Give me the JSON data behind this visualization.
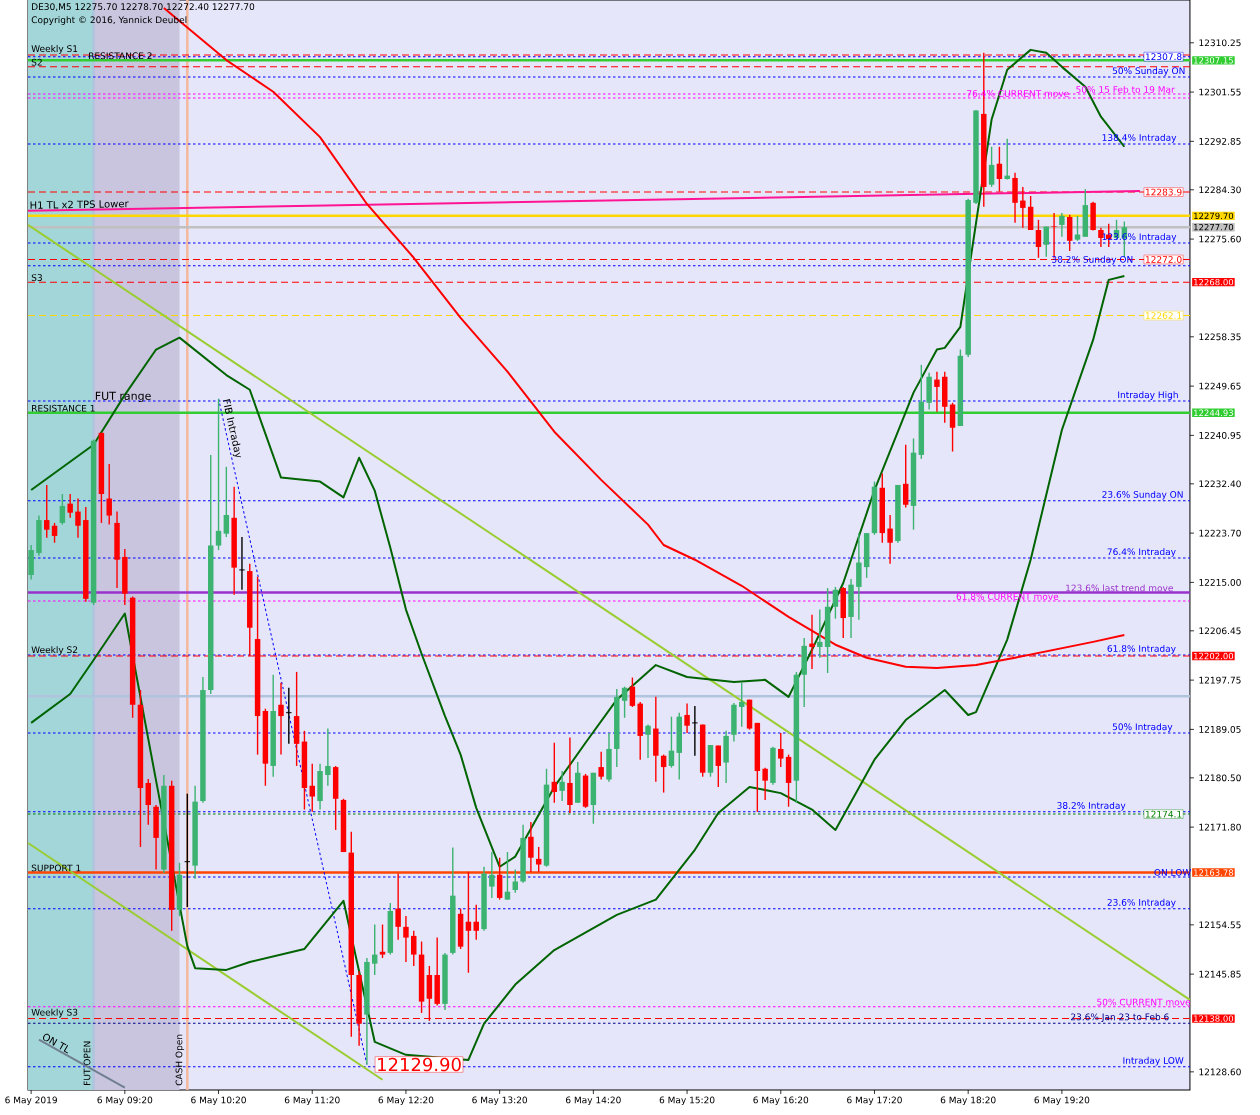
{
  "chart_data": {
    "type": "candlestick",
    "title": "DE30,M5  12275.70 12278.70 12272.40 12277.70",
    "subtitle": "Copyright © 2016, Yannick Deubel",
    "x": [
      "2019-05-06T08:20",
      "2019-05-06T08:25",
      "2019-05-06T08:30",
      "2019-05-06T08:35",
      "2019-05-06T08:40",
      "2019-05-06T08:45",
      "2019-05-06T08:50",
      "2019-05-06T08:55",
      "2019-05-06T09:00",
      "2019-05-06T09:05",
      "2019-05-06T09:10",
      "2019-05-06T09:15",
      "2019-05-06T09:20",
      "2019-05-06T09:25",
      "2019-05-06T09:30",
      "2019-05-06T09:35",
      "2019-05-06T09:40",
      "2019-05-06T09:45",
      "2019-05-06T09:50",
      "2019-05-06T09:55",
      "2019-05-06T10:00",
      "2019-05-06T10:05",
      "2019-05-06T10:10",
      "2019-05-06T10:15",
      "2019-05-06T10:20",
      "2019-05-06T10:25",
      "2019-05-06T10:30",
      "2019-05-06T10:35",
      "2019-05-06T10:40",
      "2019-05-06T10:45",
      "2019-05-06T10:50",
      "2019-05-06T10:55",
      "2019-05-06T11:00",
      "2019-05-06T11:05",
      "2019-05-06T11:10",
      "2019-05-06T11:15",
      "2019-05-06T11:20",
      "2019-05-06T11:25",
      "2019-05-06T11:30",
      "2019-05-06T11:35",
      "2019-05-06T11:40",
      "2019-05-06T11:45",
      "2019-05-06T11:50",
      "2019-05-06T11:55",
      "2019-05-06T12:00",
      "2019-05-06T12:05",
      "2019-05-06T12:10",
      "2019-05-06T12:15",
      "2019-05-06T12:20",
      "2019-05-06T12:25",
      "2019-05-06T12:30",
      "2019-05-06T12:35",
      "2019-05-06T12:40",
      "2019-05-06T12:45",
      "2019-05-06T12:50",
      "2019-05-06T12:55",
      "2019-05-06T13:00",
      "2019-05-06T13:05",
      "2019-05-06T13:10",
      "2019-05-06T13:15",
      "2019-05-06T13:20",
      "2019-05-06T13:25",
      "2019-05-06T13:30",
      "2019-05-06T13:35",
      "2019-05-06T13:40",
      "2019-05-06T13:45",
      "2019-05-06T13:50",
      "2019-05-06T13:55",
      "2019-05-06T14:00",
      "2019-05-06T14:05",
      "2019-05-06T14:10",
      "2019-05-06T14:15",
      "2019-05-06T14:20",
      "2019-05-06T14:25",
      "2019-05-06T14:30",
      "2019-05-06T14:35",
      "2019-05-06T14:40",
      "2019-05-06T14:45",
      "2019-05-06T14:50",
      "2019-05-06T14:55",
      "2019-05-06T15:00",
      "2019-05-06T15:05",
      "2019-05-06T15:10",
      "2019-05-06T15:15",
      "2019-05-06T15:20",
      "2019-05-06T15:25",
      "2019-05-06T15:30",
      "2019-05-06T15:35",
      "2019-05-06T15:40",
      "2019-05-06T15:45",
      "2019-05-06T15:50",
      "2019-05-06T15:55",
      "2019-05-06T16:00",
      "2019-05-06T16:05",
      "2019-05-06T16:10",
      "2019-05-06T16:15",
      "2019-05-06T16:20",
      "2019-05-06T16:25",
      "2019-05-06T16:30",
      "2019-05-06T16:35",
      "2019-05-06T16:40",
      "2019-05-06T16:45",
      "2019-05-06T16:50",
      "2019-05-06T16:55",
      "2019-05-06T17:00",
      "2019-05-06T17:05",
      "2019-05-06T17:10",
      "2019-05-06T17:15",
      "2019-05-06T17:20",
      "2019-05-06T17:25",
      "2019-05-06T17:30",
      "2019-05-06T17:35",
      "2019-05-06T17:40",
      "2019-05-06T17:45",
      "2019-05-06T17:50",
      "2019-05-06T17:55",
      "2019-05-06T18:00",
      "2019-05-06T18:05",
      "2019-05-06T18:10",
      "2019-05-06T18:15",
      "2019-05-06T18:20",
      "2019-05-06T18:25",
      "2019-05-06T18:30",
      "2019-05-06T18:35",
      "2019-05-06T18:40",
      "2019-05-06T18:45",
      "2019-05-06T18:50",
      "2019-05-06T18:55",
      "2019-05-06T19:00",
      "2019-05-06T19:05",
      "2019-05-06T19:10",
      "2019-05-06T19:15",
      "2019-05-06T19:20",
      "2019-05-06T19:25",
      "2019-05-06T19:30",
      "2019-05-06T19:35",
      "2019-05-06T19:40",
      "2019-05-06T19:45",
      "2019-05-06T19:50",
      "2019-05-06T19:55",
      "2019-05-06T20:00"
    ],
    "ohlc": [
      [
        12216.3,
        12221.6,
        12215.5,
        12220.7
      ],
      [
        12220.2,
        12226.8,
        12219.7,
        12226.0
      ],
      [
        12226.0,
        12232.2,
        12222.9,
        12224.3
      ],
      [
        12225.0,
        12225.5,
        12222.0,
        12223.2
      ],
      [
        12225.5,
        12230.6,
        12225.2,
        12228.5
      ],
      [
        12228.9,
        12230.6,
        12226.4,
        12227.3
      ],
      [
        12227.5,
        12229.8,
        12222.9,
        12225.0
      ],
      [
        12226.0,
        12228.3,
        12211.6,
        12212.1
      ],
      [
        12211.4,
        12240.2,
        12211.0,
        12240.0
      ],
      [
        12241.4,
        12241.4,
        12225.5,
        12230.6
      ],
      [
        12229.8,
        12235.9,
        12225.2,
        12226.8
      ],
      [
        12225.5,
        12227.5,
        12214.0,
        12219.0
      ],
      [
        12219.5,
        12220.9,
        12211.0,
        12213.0
      ],
      [
        12212.3,
        12212.5,
        12191.1,
        12193.4
      ],
      [
        12193.4,
        12196.0,
        12168.3,
        12178.7
      ],
      [
        12179.6,
        12180.3,
        12172.2,
        12175.7
      ],
      [
        12175.4,
        12175.7,
        12164.3,
        12169.9
      ],
      [
        12164.3,
        12181.0,
        12163.7,
        12179.1
      ],
      [
        12179.1,
        12180.0,
        12153.5,
        12157.2
      ],
      [
        12157.2,
        12165.5,
        12156.1,
        12163.4
      ],
      [
        12165.7,
        12177.7,
        12157.7,
        12165.7
      ],
      [
        12165.0,
        12179.1,
        12162.7,
        12176.3
      ],
      [
        12176.4,
        12198.3,
        12176.1,
        12196.0
      ],
      [
        12196.0,
        12237.5,
        12195.3,
        12221.5
      ],
      [
        12221.5,
        12247.4,
        12220.7,
        12224.1
      ],
      [
        12223.6,
        12235.4,
        12223.0,
        12226.9
      ],
      [
        12226.4,
        12231.9,
        12212.8,
        12217.6
      ],
      [
        12217.2,
        12223.0,
        12213.7,
        12217.2
      ],
      [
        12217.0,
        12218.3,
        12202.0,
        12207.0
      ],
      [
        12205.0,
        12216.0,
        12184.6,
        12191.4
      ],
      [
        12192.3,
        12192.7,
        12179.1,
        12183.0
      ],
      [
        12182.6,
        12198.7,
        12180.7,
        12192.3
      ],
      [
        12193.4,
        12197.3,
        12184.6,
        12191.4
      ],
      [
        12192.0,
        12196.4,
        12186.5,
        12192.0
      ],
      [
        12191.4,
        12199.2,
        12182.6,
        12186.5
      ],
      [
        12186.9,
        12188.8,
        12174.9,
        12178.7
      ],
      [
        12179.1,
        12183.0,
        12174.5,
        12177.2
      ],
      [
        12176.4,
        12183.0,
        12174.9,
        12181.7
      ],
      [
        12181.0,
        12189.2,
        12179.1,
        12182.6
      ],
      [
        12182.4,
        12182.6,
        12171.3,
        12176.8
      ],
      [
        12176.6,
        12176.8,
        12167.4,
        12167.4
      ],
      [
        12167.3,
        12171.0,
        12134.8,
        12145.7
      ],
      [
        12145.7,
        12146.4,
        12133.2,
        12137.1
      ],
      [
        12138.7,
        12148.7,
        12129.9,
        12148.0
      ],
      [
        12147.7,
        12154.6,
        12145.7,
        12149.3
      ],
      [
        12149.8,
        12154.6,
        12148.7,
        12149.3
      ],
      [
        12149.6,
        12158.4,
        12149.3,
        12157.0
      ],
      [
        12157.4,
        12163.6,
        12151.9,
        12154.2
      ],
      [
        12154.2,
        12156.1,
        12148.0,
        12152.3
      ],
      [
        12152.6,
        12153.5,
        12147.3,
        12149.3
      ],
      [
        12149.3,
        12151.6,
        12139.0,
        12141.0
      ],
      [
        12145.7,
        12147.3,
        12137.6,
        12141.5
      ],
      [
        12145.7,
        12152.3,
        12140.3,
        12140.6
      ],
      [
        12140.6,
        12149.6,
        12139.5,
        12149.3
      ],
      [
        12149.6,
        12168.2,
        12149.3,
        12159.7
      ],
      [
        12156.5,
        12157.4,
        12150.3,
        12150.7
      ],
      [
        12155.1,
        12163.9,
        12146.1,
        12153.5
      ],
      [
        12155.1,
        12158.1,
        12151.9,
        12153.5
      ],
      [
        12153.8,
        12164.8,
        12153.5,
        12163.6
      ],
      [
        12161.3,
        12167.4,
        12159.3,
        12163.4
      ],
      [
        12163.4,
        12166.4,
        12159.0,
        12159.3
      ],
      [
        12159.0,
        12167.4,
        12159.0,
        12160.4
      ],
      [
        12160.7,
        12164.3,
        12160.2,
        12162.2
      ],
      [
        12162.2,
        12172.2,
        12162.0,
        12169.9
      ],
      [
        12170.1,
        12172.7,
        12163.9,
        12166.4
      ],
      [
        12166.2,
        12168.3,
        12163.9,
        12165.2
      ],
      [
        12165.0,
        12182.1,
        12164.8,
        12179.3
      ],
      [
        12179.8,
        12186.7,
        12176.1,
        12178.0
      ],
      [
        12178.2,
        12181.7,
        12176.4,
        12179.8
      ],
      [
        12179.6,
        12187.6,
        12174.3,
        12175.7
      ],
      [
        12176.1,
        12183.3,
        12176.1,
        12181.4
      ],
      [
        12180.9,
        12181.2,
        12175.2,
        12175.4
      ],
      [
        12175.7,
        12181.4,
        12172.4,
        12181.4
      ],
      [
        12182.4,
        12185.1,
        12180.2,
        12180.7
      ],
      [
        12180.2,
        12188.4,
        12179.8,
        12185.6
      ],
      [
        12185.6,
        12196.2,
        12182.4,
        12194.8
      ],
      [
        12194.1,
        12196.6,
        12191.1,
        12196.4
      ],
      [
        12196.6,
        12198.2,
        12193.0,
        12193.2
      ],
      [
        12193.6,
        12193.9,
        12183.7,
        12187.9
      ],
      [
        12188.1,
        12189.9,
        12184.0,
        12189.7
      ],
      [
        12189.2,
        12194.8,
        12179.8,
        12184.4
      ],
      [
        12184.4,
        12184.6,
        12177.9,
        12182.4
      ],
      [
        12182.6,
        12191.3,
        12182.3,
        12185.3
      ],
      [
        12184.9,
        12192.0,
        12180.2,
        12191.3
      ],
      [
        12191.6,
        12193.6,
        12188.4,
        12189.7
      ],
      [
        12190.2,
        12193.2,
        12184.4,
        12190.2
      ],
      [
        12189.9,
        12189.9,
        12180.7,
        12181.4
      ],
      [
        12181.4,
        12186.3,
        12180.7,
        12186.3
      ],
      [
        12186.2,
        12186.2,
        12178.9,
        12182.6
      ],
      [
        12183.2,
        12188.8,
        12179.6,
        12187.9
      ],
      [
        12188.1,
        12193.7,
        12186.9,
        12193.4
      ],
      [
        12193.0,
        12197.3,
        12189.5,
        12193.9
      ],
      [
        12194.3,
        12194.3,
        12189.0,
        12189.2
      ],
      [
        12190.2,
        12190.2,
        12174.5,
        12181.7
      ],
      [
        12182.1,
        12182.3,
        12176.6,
        12180.0
      ],
      [
        12179.6,
        12186.0,
        12179.3,
        12185.8
      ],
      [
        12185.6,
        12188.4,
        12182.4,
        12183.9
      ],
      [
        12184.2,
        12184.6,
        12175.4,
        12179.6
      ],
      [
        12180.0,
        12199.2,
        12176.1,
        12198.7
      ],
      [
        12198.7,
        12205.2,
        12193.0,
        12203.8
      ],
      [
        12204.2,
        12209.3,
        12199.7,
        12203.6
      ],
      [
        12203.6,
        12210.2,
        12201.7,
        12204.5
      ],
      [
        12203.6,
        12214.0,
        12199.0,
        12210.7
      ],
      [
        12210.7,
        12214.2,
        12208.6,
        12213.7
      ],
      [
        12214.0,
        12214.2,
        12205.2,
        12208.7
      ],
      [
        12208.9,
        12215.6,
        12205.2,
        12214.6
      ],
      [
        12214.2,
        12223.7,
        12208.4,
        12218.5
      ],
      [
        12217.7,
        12223.7,
        12215.8,
        12223.7
      ],
      [
        12223.7,
        12232.8,
        12223.4,
        12231.9
      ],
      [
        12231.7,
        12234.2,
        12222.0,
        12223.7
      ],
      [
        12224.5,
        12226.9,
        12218.3,
        12222.0
      ],
      [
        12222.3,
        12232.2,
        12222.0,
        12232.2
      ],
      [
        12232.4,
        12239.3,
        12228.2,
        12228.7
      ],
      [
        12228.5,
        12240.4,
        12224.3,
        12237.9
      ],
      [
        12237.5,
        12253.4,
        12236.8,
        12246.9
      ],
      [
        12246.7,
        12252.0,
        12245.5,
        12251.3
      ],
      [
        12250.8,
        12252.2,
        12245.1,
        12249.5
      ],
      [
        12251.3,
        12252.2,
        12243.2,
        12246.0
      ],
      [
        12246.4,
        12246.7,
        12238.1,
        12242.3
      ],
      [
        12242.6,
        12256.1,
        12242.6,
        12255.0
      ],
      [
        12255.2,
        12282.7,
        12254.8,
        12282.5
      ],
      [
        12282.0,
        12298.4,
        12281.8,
        12298.3
      ],
      [
        12297.7,
        12308.5,
        12281.3,
        12284.8
      ],
      [
        12285.2,
        12291.9,
        12284.8,
        12288.7
      ],
      [
        12288.9,
        12291.9,
        12284.0,
        12286.2
      ],
      [
        12286.2,
        12293.3,
        12286.1,
        12286.8
      ],
      [
        12286.4,
        12287.3,
        12278.5,
        12282.0
      ],
      [
        12282.4,
        12284.8,
        12277.6,
        12281.1
      ],
      [
        12281.3,
        12283.2,
        12277.2,
        12277.2
      ],
      [
        12277.2,
        12279.0,
        12272.3,
        12274.2
      ],
      [
        12274.6,
        12277.8,
        12272.5,
        12277.8
      ],
      [
        12277.9,
        12280.2,
        12272.3,
        12277.8
      ],
      [
        12278.1,
        12280.2,
        12276.0,
        12279.7
      ],
      [
        12279.5,
        12279.9,
        12273.5,
        12275.3
      ],
      [
        12275.5,
        12279.7,
        12275.3,
        12276.4
      ],
      [
        12276.0,
        12284.4,
        12276.0,
        12281.6
      ],
      [
        12282.0,
        12282.2,
        12277.1,
        12277.2
      ],
      [
        12277.2,
        12277.6,
        12274.2,
        12275.8
      ],
      [
        12276.4,
        12278.3,
        12274.2,
        12275.6
      ],
      [
        12275.8,
        12279.0,
        12275.5,
        12277.2
      ],
      [
        12275.7,
        12278.7,
        12272.4,
        12277.7
      ]
    ],
    "series": [
      {
        "type": "line",
        "name": "H1 TL x2 TPS Lower",
        "color": "#ff1493",
        "x": [
          "2019-05-06T08:18",
          "2019-05-06T20:10"
        ],
        "values": [
          12280.6,
          12284.1
        ]
      },
      {
        "type": "line",
        "color": "#9acd32",
        "x": [
          "2019-05-06T08:18",
          "2019-05-06T20:42"
        ],
        "values": [
          12278.1,
          12141.3
        ]
      },
      {
        "type": "line",
        "color": "#9acd32",
        "x": [
          "2019-05-06T08:18",
          "2019-05-06T12:05"
        ],
        "values": [
          12169.0,
          12127.2
        ]
      },
      {
        "type": "line",
        "name": "ON TL",
        "color": "#708090",
        "x": [
          "2019-05-06T08:25",
          "2019-05-06T09:20"
        ],
        "values": [
          12134.3,
          12125.8
        ]
      },
      {
        "type": "line",
        "name": "FIB Intraday",
        "color": "#0000ff",
        "line_style": "dotted",
        "x": [
          "2019-05-06T10:20",
          "2019-05-06T11:55"
        ],
        "values": [
          12247.4,
          12129.9
        ]
      },
      {
        "type": "line",
        "color": "#006400",
        "x": [
          "2019-05-06T08:20",
          "2019-05-06T09:00",
          "2019-05-06T09:20",
          "2019-05-06T09:40",
          "2019-05-06T09:55",
          "2019-05-06T10:25",
          "2019-05-06T10:40",
          "2019-05-06T11:00",
          "2019-05-06T11:25",
          "2019-05-06T11:40",
          "2019-05-06T11:50",
          "2019-05-06T12:00",
          "2019-05-06T12:10",
          "2019-05-06T12:20",
          "2019-05-06T12:30",
          "2019-05-06T12:45",
          "2019-05-06T12:55",
          "2019-05-06T13:05",
          "2019-05-06T13:20",
          "2019-05-06T13:30",
          "2019-05-06T13:55",
          "2019-05-06T14:15",
          "2019-05-06T14:35",
          "2019-05-06T15:00",
          "2019-05-06T15:20",
          "2019-05-06T15:50",
          "2019-05-06T16:10",
          "2019-05-06T16:25",
          "2019-05-06T16:40",
          "2019-05-06T17:00",
          "2019-05-06T17:20",
          "2019-05-06T17:45",
          "2019-05-06T18:00",
          "2019-05-06T18:05",
          "2019-05-06T18:15",
          "2019-05-06T18:20",
          "2019-05-06T18:35",
          "2019-05-06T18:45",
          "2019-05-06T19:00",
          "2019-05-06T19:10",
          "2019-05-06T19:20",
          "2019-05-06T19:35",
          "2019-05-06T19:45",
          "2019-05-06T20:00"
        ],
        "values": [
          12231.3,
          12239.3,
          12248.1,
          12256.1,
          12258.2,
          12251.6,
          12249.0,
          12233.5,
          12232.8,
          12230.0,
          12237.0,
          12231.2,
          12221.1,
          12210.2,
          12202.4,
          12191.4,
          12184.6,
          12175.2,
          12164.8,
          12166.6,
          12178.9,
          12186.7,
          12194.3,
          12200.4,
          12198.3,
          12197.4,
          12197.8,
          12194.8,
          12203.1,
          12214.9,
          12231.3,
          12248.5,
          12256.1,
          12256.4,
          12260.1,
          null,
          12296.7,
          12305.5,
          12309.0,
          12308.5,
          12306.0,
          12302.5,
          12297.2,
          12291.9
        ]
      },
      {
        "type": "line",
        "color": "#006400",
        "x": [
          "2019-05-06T08:20",
          "2019-05-06T08:45",
          "2019-05-06T09:00",
          "2019-05-06T09:20",
          "2019-05-06T09:25",
          "2019-05-06T09:40",
          "2019-05-06T09:50",
          "2019-05-06T10:00",
          "2019-05-06T10:05",
          "2019-05-06T10:25",
          "2019-05-06T10:40",
          "2019-05-06T11:15",
          "2019-05-06T11:40",
          "2019-05-06T12:00",
          "2019-05-06T12:20",
          "2019-05-06T12:45",
          "2019-05-06T13:00",
          "2019-05-06T13:10",
          "2019-05-06T13:30",
          "2019-05-06T13:55",
          "2019-05-06T14:35",
          "2019-05-06T15:00",
          "2019-05-06T15:25",
          "2019-05-06T15:40",
          "2019-05-06T16:00",
          "2019-05-06T16:20",
          "2019-05-06T16:40",
          "2019-05-06T16:55",
          "2019-05-06T17:20",
          "2019-05-06T17:40",
          "2019-05-06T18:05",
          "2019-05-06T18:20",
          "2019-05-06T18:25",
          "2019-05-06T18:45",
          "2019-05-06T19:00",
          "2019-05-06T19:20",
          "2019-05-06T19:40",
          "2019-05-06T19:50",
          "2019-05-06T20:00"
        ],
        "values": [
          12190.2,
          12195.3,
          12201.3,
          12209.5,
          null,
          12180.0,
          null,
          12150.8,
          12146.9,
          12146.6,
          12148.0,
          12150.3,
          12158.8,
          12133.9,
          12131.6,
          null,
          12130.7,
          12137.1,
          12144.0,
          12150.1,
          12156.3,
          12159.0,
          12167.8,
          12174.3,
          12178.9,
          12177.8,
          12174.9,
          12171.3,
          12183.7,
          12190.7,
          12196.0,
          12191.6,
          12192.1,
          12204.9,
          12219.0,
          12241.9,
          12257.8,
          12268.4,
          12269.1
        ]
      },
      {
        "type": "line",
        "color": "#ff0000",
        "x": [
          "2019-05-06T09:45",
          "2019-05-06T10:25",
          "2019-05-06T10:55",
          "2019-05-06T11:25",
          "2019-05-06T11:55",
          "2019-05-06T12:25",
          "2019-05-06T12:55",
          "2019-05-06T13:25",
          "2019-05-06T13:55",
          "2019-05-06T14:25",
          "2019-05-06T14:55",
          "2019-05-06T15:05",
          "2019-05-06T15:25",
          "2019-05-06T15:55",
          "2019-05-06T16:25",
          "2019-05-06T16:55",
          "2019-05-06T17:15",
          "2019-05-06T17:40",
          "2019-05-06T18:00",
          "2019-05-06T18:25",
          "2019-05-06T18:50",
          "2019-05-06T19:15",
          "2019-05-06T19:40",
          "2019-05-06T20:00"
        ],
        "values": [
          12316.4,
          12307.2,
          12301.6,
          12293.6,
          12281.8,
          12272.3,
          12261.7,
          12252.2,
          12241.6,
          12233.1,
          12225.2,
          12221.6,
          12219.0,
          12214.4,
          12208.9,
          12204.0,
          12201.7,
          12200.1,
          12199.9,
          12200.4,
          12201.7,
          12203.1,
          12204.5,
          12205.7
        ]
      }
    ],
    "xlim": [
      "2019-05-06T08:18",
      "2019-05-06T20:42"
    ],
    "ylim": [
      12125.4,
      12317.8
    ],
    "xticks": [
      {
        "value": "2019-05-06T08:20",
        "label": "6 May 2019"
      },
      {
        "value": "2019-05-06T09:20",
        "label": "6 May 09:20"
      },
      {
        "value": "2019-05-06T10:20",
        "label": "6 May 10:20"
      },
      {
        "value": "2019-05-06T11:20",
        "label": "6 May 11:20"
      },
      {
        "value": "2019-05-06T12:20",
        "label": "6 May 12:20"
      },
      {
        "value": "2019-05-06T13:20",
        "label": "6 May 13:20"
      },
      {
        "value": "2019-05-06T14:20",
        "label": "6 May 14:20"
      },
      {
        "value": "2019-05-06T15:20",
        "label": "6 May 15:20"
      },
      {
        "value": "2019-05-06T16:20",
        "label": "6 May 16:20"
      },
      {
        "value": "2019-05-06T17:20",
        "label": "6 May 17:20"
      },
      {
        "value": "2019-05-06T18:20",
        "label": "6 May 18:20"
      },
      {
        "value": "2019-05-06T19:20",
        "label": "6 May 19:20"
      }
    ],
    "yticks": [
      {
        "value": 12310.25,
        "label": "12310.25"
      },
      {
        "value": 12301.55,
        "label": "12301.55"
      },
      {
        "value": 12292.85,
        "label": "12292.85"
      },
      {
        "value": 12284.3,
        "label": "12284.30"
      },
      {
        "value": 12275.6,
        "label": "12275.60"
      },
      {
        "value": 12258.35,
        "label": "12258.35"
      },
      {
        "value": 12249.65,
        "label": "12249.65"
      },
      {
        "value": 12240.95,
        "label": "12240.95"
      },
      {
        "value": 12232.4,
        "label": "12232.40"
      },
      {
        "value": 12223.7,
        "label": "12223.70"
      },
      {
        "value": 12215.0,
        "label": "12215.00"
      },
      {
        "value": 12206.45,
        "label": "12206.45"
      },
      {
        "value": 12197.75,
        "label": "12197.75"
      },
      {
        "value": 12189.05,
        "label": "12189.05"
      },
      {
        "value": 12180.5,
        "label": "12180.50"
      },
      {
        "value": 12171.8,
        "label": "12171.80"
      },
      {
        "value": 12154.55,
        "label": "12154.55"
      },
      {
        "value": 12145.85,
        "label": "12145.85"
      },
      {
        "value": 12128.6,
        "label": "12128.60"
      }
    ],
    "bands": [
      {
        "axis": "x",
        "from": "2019-05-06T08:18",
        "to": "2019-05-06T09:00",
        "color": "#a3d6d9"
      },
      {
        "axis": "x",
        "from": "2019-05-06T09:00",
        "to": "2019-05-06T09:55",
        "label": "FUT range",
        "color": "#c9c5df"
      }
    ],
    "ref_lines": [
      {
        "axis": "y",
        "value": 12308.1,
        "label": "Weekly S1",
        "color": "#ff0000",
        "line_style": "dashed"
      },
      {
        "axis": "y",
        "value": 12307.8,
        "color": "#0000ff",
        "line_style": "dotted"
      },
      {
        "axis": "y",
        "value": 12307.15,
        "label": "RESISTANCE 2",
        "color": "#32cd32",
        "line_style": "solid"
      },
      {
        "axis": "y",
        "value": 12306.0,
        "label": "S2",
        "color": "#ff0000",
        "line_style": "dashed"
      },
      {
        "axis": "y",
        "value": 12304.2,
        "label": "50%  Sunday ON",
        "color": "#0000ff",
        "line_style": "dotted"
      },
      {
        "axis": "y",
        "value": 12301.2,
        "label": "50%  15 Feb to 19 Mar",
        "color": "#ff00ff",
        "line_style": "dotted"
      },
      {
        "axis": "y",
        "value": 12300.5,
        "label": "76.4%  CURRENT move",
        "color": "#ff00ff",
        "line_style": "dotted"
      },
      {
        "axis": "y",
        "value": 12292.4,
        "label": "138.4%  Intraday",
        "color": "#0000ff",
        "line_style": "dotted"
      },
      {
        "axis": "y",
        "value": 12283.9,
        "color": "#ff0000",
        "line_style": "dashed"
      },
      {
        "axis": "y",
        "value": 12279.7,
        "color": "#ffd700",
        "line_style": "solid"
      },
      {
        "axis": "y",
        "value": 12277.7,
        "color": "#c0c0c0",
        "line_style": "solid"
      },
      {
        "axis": "y",
        "value": 12274.9,
        "label": "123.6%  Intraday",
        "color": "#0000ff",
        "line_style": "dotted"
      },
      {
        "axis": "y",
        "value": 12272.0,
        "color": "#ff0000",
        "line_style": "dashed"
      },
      {
        "axis": "y",
        "value": 12270.9,
        "label": "38.2%  Sunday ON",
        "color": "#0000ff",
        "line_style": "dotted"
      },
      {
        "axis": "y",
        "value": 12268.0,
        "label": "S3",
        "color": "#ff0000",
        "line_style": "dashed"
      },
      {
        "axis": "y",
        "value": 12262.1,
        "color": "#ffd700",
        "line_style": "dashed"
      },
      {
        "axis": "y",
        "value": 12247.0,
        "label": "Intraday High",
        "color": "#0000ff",
        "line_style": "dotted"
      },
      {
        "axis": "y",
        "value": 12244.93,
        "label": "RESISTANCE 1",
        "color": "#32cd32",
        "line_style": "solid"
      },
      {
        "axis": "y",
        "value": 12229.4,
        "label": "23.6%  Sunday ON",
        "color": "#0000ff",
        "line_style": "dotted"
      },
      {
        "axis": "y",
        "value": 12219.3,
        "label": "76.4%  Intraday",
        "color": "#0000ff",
        "line_style": "dotted"
      },
      {
        "axis": "y",
        "value": 12213.2,
        "label": "123.6%  last trend move",
        "color": "#9932cc",
        "line_style": "solid"
      },
      {
        "axis": "y",
        "value": 12211.7,
        "label": "61.8%  CURRENT move",
        "color": "#ff00ff",
        "line_style": "dotted"
      },
      {
        "axis": "y",
        "value": 12202.2,
        "label": "61.8%  Intraday",
        "color": "#0000ff",
        "line_style": "dotted"
      },
      {
        "axis": "y",
        "value": 12202.0,
        "label": "Weekly S2",
        "color": "#ff0000",
        "line_style": "dashed"
      },
      {
        "axis": "y",
        "value": 12194.9,
        "color": "#b0c4de",
        "line_style": "solid"
      },
      {
        "axis": "y",
        "value": 12188.4,
        "label": "50%   Intraday",
        "color": "#0000ff",
        "line_style": "dotted"
      },
      {
        "axis": "y",
        "value": 12174.5,
        "label": "38.2%  Intraday",
        "color": "#0000ff",
        "line_style": "dotted"
      },
      {
        "axis": "y",
        "value": 12174.1,
        "color": "#008000",
        "line_style": "dotted"
      },
      {
        "axis": "y",
        "value": 12163.78,
        "label": "SUPPORT 1",
        "color": "#ff4500",
        "line_style": "solid"
      },
      {
        "axis": "y",
        "value": 12163.0,
        "label": "ON LOW",
        "color": "#0000ff",
        "line_style": "dotted"
      },
      {
        "axis": "y",
        "value": 12157.4,
        "label": "23.6%  Intraday",
        "color": "#0000ff",
        "line_style": "dotted"
      },
      {
        "axis": "y",
        "value": 12140.1,
        "label": "50%  CURRENT move",
        "color": "#ff00ff",
        "line_style": "dotted"
      },
      {
        "axis": "y",
        "value": 12138.0,
        "label": "Weekly S3",
        "color": "#ff0000",
        "line_style": "dashed"
      },
      {
        "axis": "y",
        "value": 12137.2,
        "label": "23.6%  Jan 23 to Feb 6",
        "color": "#00008b",
        "line_style": "dotted"
      },
      {
        "axis": "y",
        "value": 12129.5,
        "label": "Intraday LOW",
        "color": "#0000ff",
        "line_style": "dotted"
      },
      {
        "axis": "x",
        "value": "2019-05-06T09:00",
        "label": "FUT OPEN",
        "color": "#b0c4de",
        "line_style": "solid"
      },
      {
        "axis": "x",
        "value": "2019-05-06T10:00",
        "label": "CASH Open",
        "color": "#f4b89c",
        "line_style": "solid"
      }
    ],
    "annotations": [
      {
        "text": "12307.8",
        "x": "2019-05-06T20:26",
        "y": 12307.8
      },
      {
        "text": "12283.9",
        "x": "2019-05-06T20:26",
        "y": 12283.9
      },
      {
        "text": "12272.0",
        "x": "2019-05-06T20:26",
        "y": 12272.0
      },
      {
        "text": "12262.1",
        "x": "2019-05-06T20:26",
        "y": 12262.1
      },
      {
        "text": "12174.1",
        "x": "2019-05-06T20:26",
        "y": 12174.1
      },
      {
        "text": "12129.90",
        "x": "2019-05-06T11:55",
        "y": 12129.9
      },
      {
        "text": "12307.15",
        "x": "2019-05-06T20:42",
        "y": 12307.15
      },
      {
        "text": "12279.70",
        "x": "2019-05-06T20:42",
        "y": 12279.7
      },
      {
        "text": "12277.70",
        "x": "2019-05-06T20:42",
        "y": 12277.7
      },
      {
        "text": "12268.00",
        "x": "2019-05-06T20:42",
        "y": 12268.0
      },
      {
        "text": "12244.93",
        "x": "2019-05-06T20:42",
        "y": 12244.93
      },
      {
        "text": "12202.00",
        "x": "2019-05-06T20:42",
        "y": 12202.0
      },
      {
        "text": "12163.78",
        "x": "2019-05-06T20:42",
        "y": 12163.78
      },
      {
        "text": "12138.00",
        "x": "2019-05-06T20:42",
        "y": 12138.0
      }
    ]
  }
}
